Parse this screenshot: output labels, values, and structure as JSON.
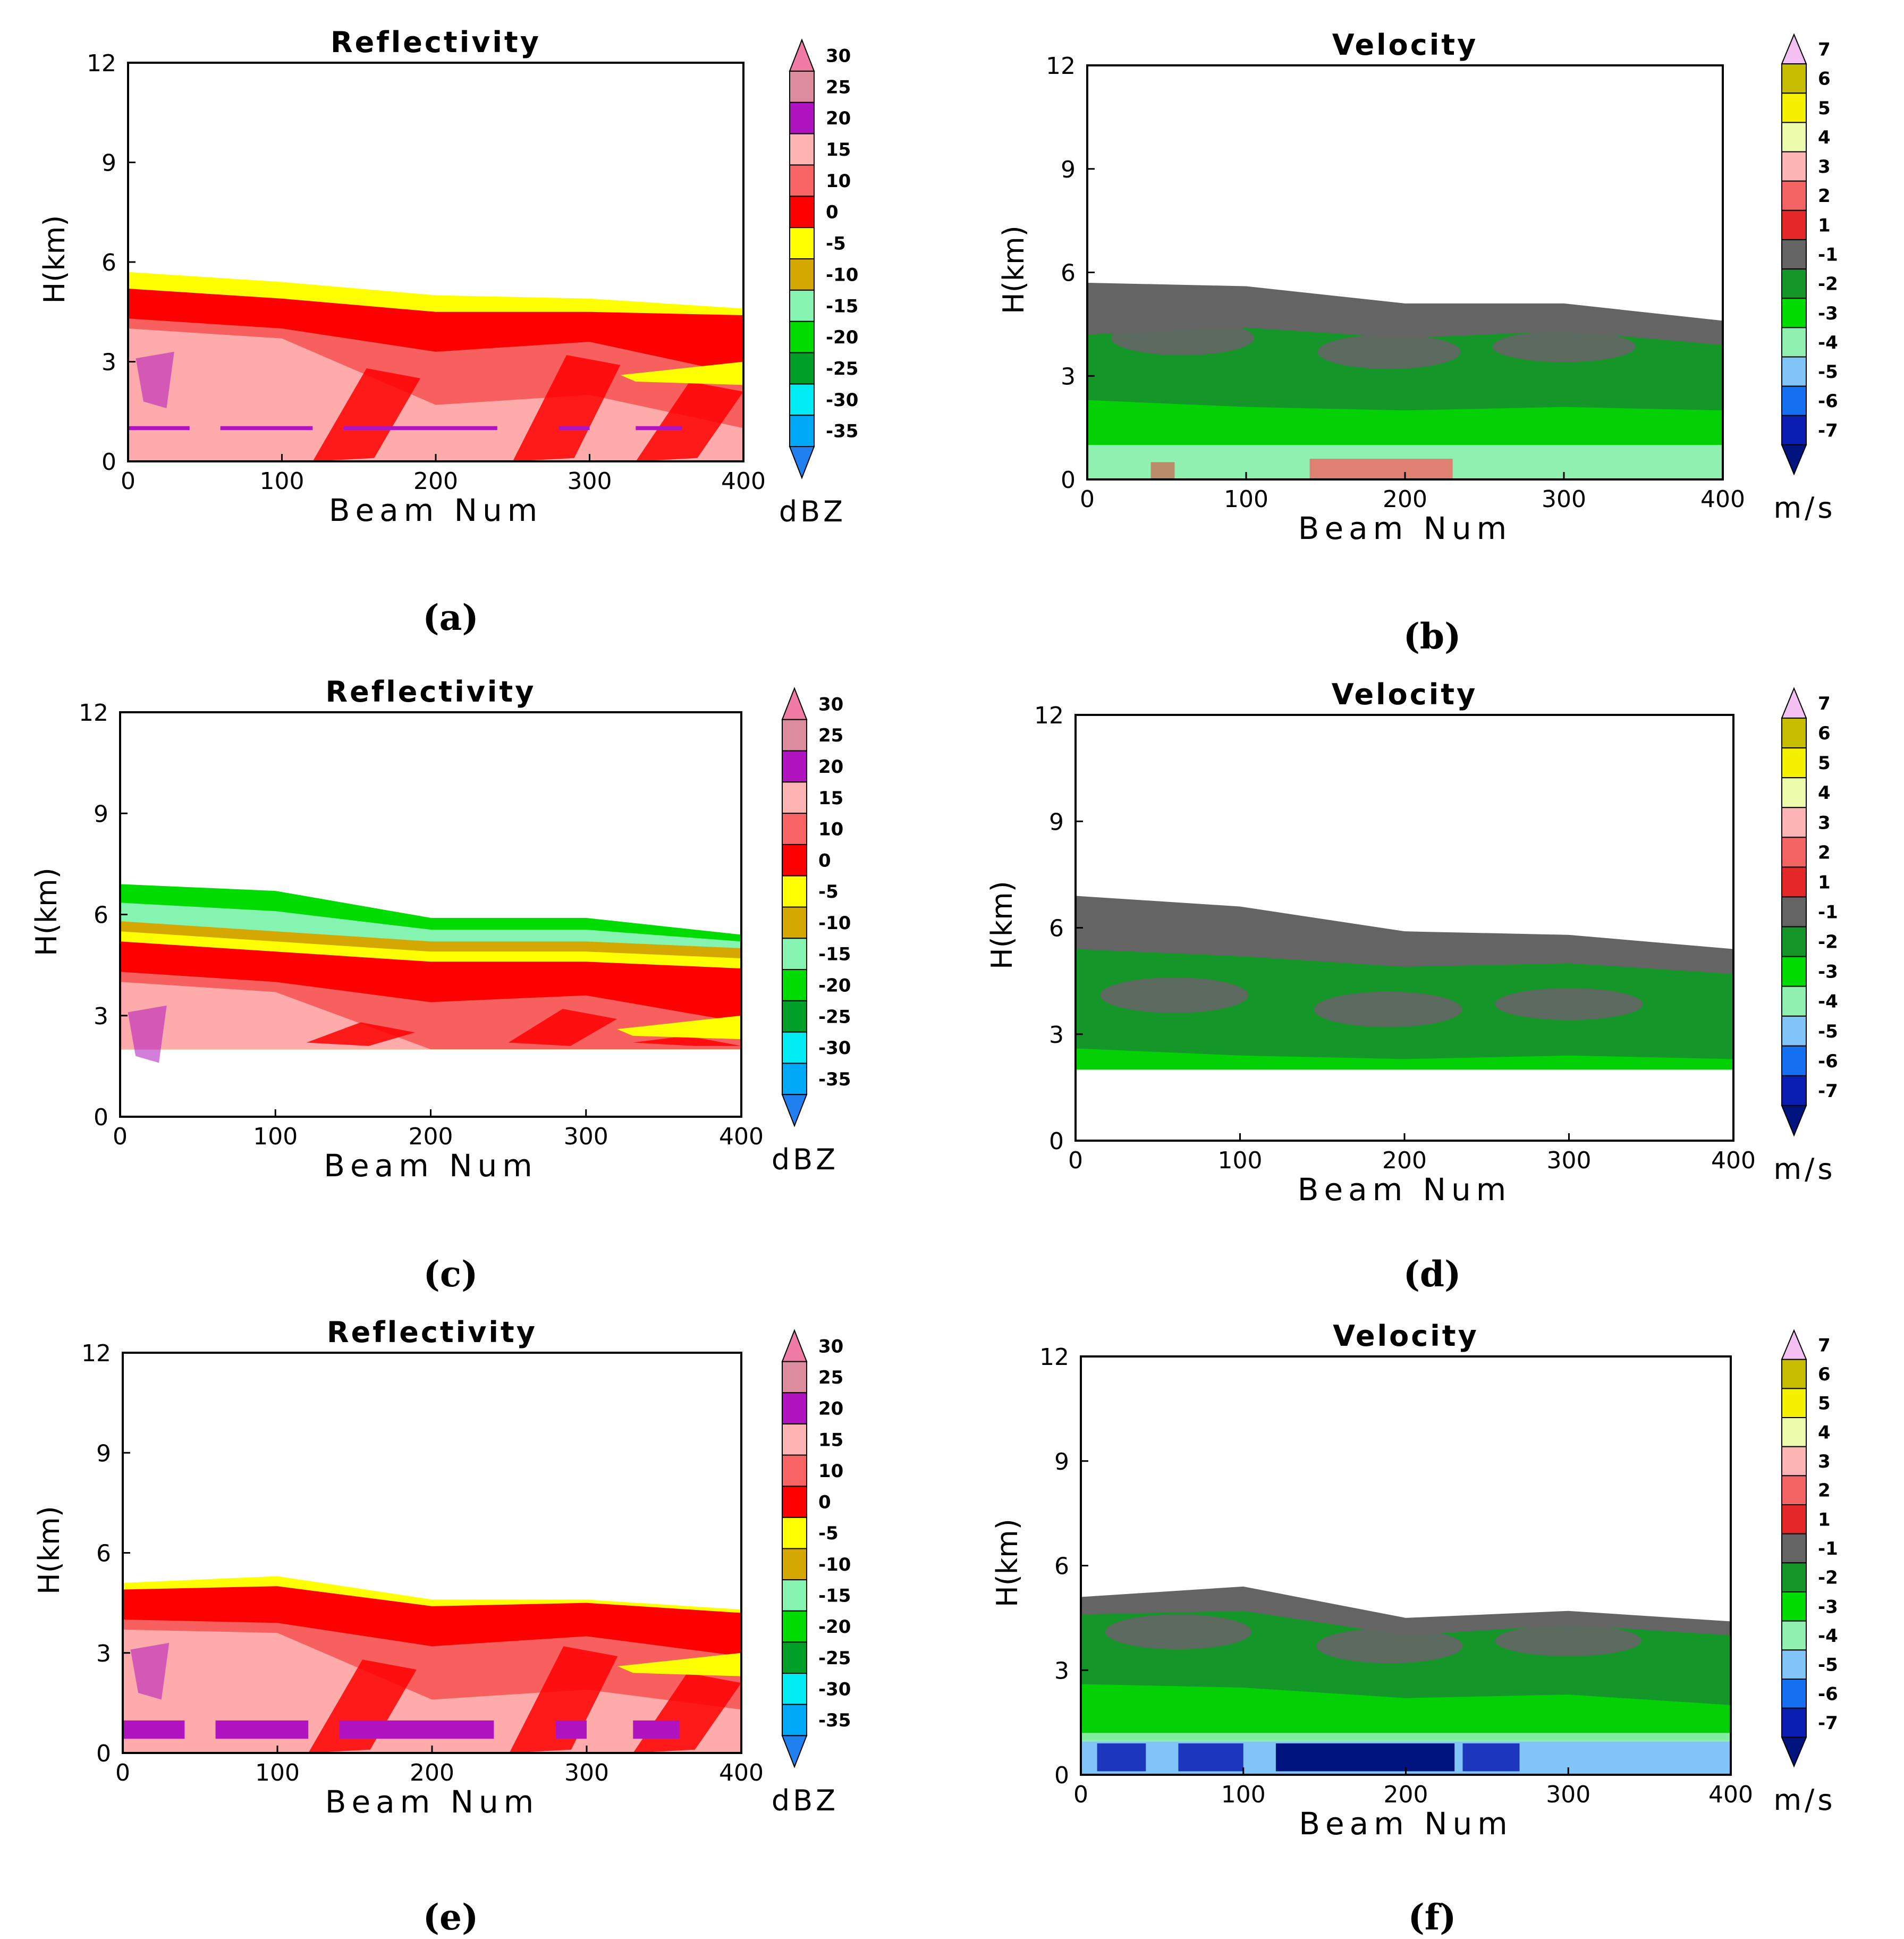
{
  "chart_data": [
    {
      "panel": "(a)",
      "type": "heatmap",
      "title": "Reflectivity",
      "xlabel": "Beam Num",
      "ylabel": "H(km)",
      "xlim": [
        0,
        400
      ],
      "ylim": [
        0,
        12
      ],
      "xticks": [
        "0",
        "100",
        "200",
        "300",
        "400"
      ],
      "yticks": [
        "0",
        "3",
        "6",
        "9",
        "12"
      ],
      "colorbar": {
        "unit": "dBZ",
        "labels": [
          "30",
          "25",
          "20",
          "15",
          "10",
          "0",
          "-5",
          "-10",
          "-15",
          "-20",
          "-25",
          "-30",
          "-35"
        ],
        "colors": [
          "#f07ca6",
          "#dc8c9c",
          "#b014c0",
          "#ffb4b4",
          "#f86464",
          "#ff0000",
          "#ffff00",
          "#d4a800",
          "#84f4b0",
          "#00dc00",
          "#00a028",
          "#00ecf4",
          "#00a8f8",
          "#2080f0"
        ]
      },
      "profile": {
        "top": [
          5.7,
          5.4,
          5.0,
          4.9,
          4.6
        ],
        "red_top": [
          5.2,
          4.9,
          4.5,
          4.5,
          4.4
        ],
        "mid_top": [
          4.3,
          4.0,
          3.3,
          3.6,
          2.6
        ],
        "base": 0.0,
        "band": [
          0.8,
          1.2
        ],
        "band_color": "#b014c0"
      }
    },
    {
      "panel": "(b)",
      "type": "heatmap",
      "title": "Velocity",
      "xlabel": "Beam Num",
      "ylabel": "H(km)",
      "xlim": [
        0,
        400
      ],
      "ylim": [
        0,
        12
      ],
      "xticks": [
        "0",
        "100",
        "200",
        "300",
        "400"
      ],
      "yticks": [
        "0",
        "3",
        "6",
        "9",
        "12"
      ],
      "colorbar": {
        "unit": "m/s",
        "labels": [
          "7",
          "6",
          "5",
          "4",
          "3",
          "2",
          "1",
          "-1",
          "-2",
          "-3",
          "-4",
          "-5",
          "-6",
          "-7"
        ],
        "colors": [
          "#f4c0f4",
          "#c8bc00",
          "#f4f000",
          "#ecfcac",
          "#fcb4b4",
          "#f46464",
          "#e42828",
          "#646464",
          "#149628",
          "#00dc00",
          "#90f0b0",
          "#80c4f8",
          "#1470f0",
          "#0a1eb4",
          "#001480"
        ]
      },
      "profile": {
        "top": [
          5.7,
          5.6,
          5.1,
          5.1,
          4.6
        ],
        "gray_bottom": [
          4.2,
          4.4,
          4.1,
          4.3,
          3.9
        ],
        "low_top": [
          2.3,
          2.1,
          2.0,
          2.1,
          2.0
        ],
        "base": 0.0,
        "band": [
          0.0,
          1.0
        ],
        "band_color": "#90f0b0"
      }
    },
    {
      "panel": "(c)",
      "type": "heatmap",
      "title": "Reflectivity",
      "xlabel": "Beam Num",
      "ylabel": "H(km)",
      "xlim": [
        0,
        400
      ],
      "ylim": [
        0,
        12
      ],
      "xticks": [
        "0",
        "100",
        "200",
        "300",
        "400"
      ],
      "yticks": [
        "0",
        "3",
        "6",
        "9",
        "12"
      ],
      "colorbar": {
        "unit": "dBZ",
        "labels": [
          "30",
          "25",
          "20",
          "15",
          "10",
          "0",
          "-5",
          "-10",
          "-15",
          "-20",
          "-25",
          "-30",
          "-35"
        ],
        "colors": [
          "#f07ca6",
          "#dc8c9c",
          "#b014c0",
          "#ffb4b4",
          "#f86464",
          "#ff0000",
          "#ffff00",
          "#d4a800",
          "#84f4b0",
          "#00dc00",
          "#00a028",
          "#00ecf4",
          "#00a8f8",
          "#2080f0"
        ]
      },
      "profile": {
        "top": [
          6.9,
          6.7,
          5.9,
          5.9,
          5.4
        ],
        "red_top": [
          5.2,
          4.9,
          4.6,
          4.6,
          4.4
        ],
        "mid_top": [
          4.3,
          4.0,
          3.4,
          3.6,
          2.8
        ],
        "base": 2.0
      }
    },
    {
      "panel": "(d)",
      "type": "heatmap",
      "title": "Velocity",
      "xlabel": "Beam Num",
      "ylabel": "H(km)",
      "xlim": [
        0,
        400
      ],
      "ylim": [
        0,
        12
      ],
      "xticks": [
        "0",
        "100",
        "200",
        "300",
        "400"
      ],
      "yticks": [
        "0",
        "3",
        "6",
        "9",
        "12"
      ],
      "colorbar": {
        "unit": "m/s",
        "labels": [
          "7",
          "6",
          "5",
          "4",
          "3",
          "2",
          "1",
          "-1",
          "-2",
          "-3",
          "-4",
          "-5",
          "-6",
          "-7"
        ],
        "colors": [
          "#f4c0f4",
          "#c8bc00",
          "#f4f000",
          "#ecfcac",
          "#fcb4b4",
          "#f46464",
          "#e42828",
          "#646464",
          "#149628",
          "#00dc00",
          "#90f0b0",
          "#80c4f8",
          "#1470f0",
          "#0a1eb4",
          "#001480"
        ]
      },
      "profile": {
        "top": [
          6.9,
          6.6,
          5.9,
          5.8,
          5.4
        ],
        "gray_bottom": [
          5.4,
          5.2,
          4.9,
          5.0,
          4.7
        ],
        "low_top": [
          2.6,
          2.4,
          2.3,
          2.4,
          2.3
        ],
        "base": 2.0
      }
    },
    {
      "panel": "(e)",
      "type": "heatmap",
      "title": "Reflectivity",
      "xlabel": "Beam Num",
      "ylabel": "H(km)",
      "xlim": [
        0,
        400
      ],
      "ylim": [
        0,
        12
      ],
      "xticks": [
        "0",
        "100",
        "200",
        "300",
        "400"
      ],
      "yticks": [
        "0",
        "3",
        "6",
        "9",
        "12"
      ],
      "colorbar": {
        "unit": "dBZ",
        "labels": [
          "30",
          "25",
          "20",
          "15",
          "10",
          "0",
          "-5",
          "-10",
          "-15",
          "-20",
          "-25",
          "-30",
          "-35"
        ],
        "colors": [
          "#f07ca6",
          "#dc8c9c",
          "#b014c0",
          "#ffb4b4",
          "#f86464",
          "#ff0000",
          "#ffff00",
          "#d4a800",
          "#84f4b0",
          "#00dc00",
          "#00a028",
          "#00ecf4",
          "#00a8f8",
          "#2080f0"
        ]
      },
      "profile": {
        "top": [
          5.1,
          5.3,
          4.6,
          4.6,
          4.3
        ],
        "red_top": [
          4.9,
          5.0,
          4.4,
          4.5,
          4.2
        ],
        "mid_top": [
          4.0,
          3.9,
          3.2,
          3.5,
          2.9
        ],
        "base": 0.0,
        "band": [
          0.3,
          1.1
        ],
        "band_color": "#b014c0"
      }
    },
    {
      "panel": "(f)",
      "type": "heatmap",
      "title": "Velocity",
      "xlabel": "Beam Num",
      "ylabel": "H(km)",
      "xlim": [
        0,
        400
      ],
      "ylim": [
        0,
        12
      ],
      "xticks": [
        "0",
        "100",
        "200",
        "300",
        "400"
      ],
      "yticks": [
        "0",
        "3",
        "6",
        "9",
        "12"
      ],
      "colorbar": {
        "unit": "m/s",
        "labels": [
          "7",
          "6",
          "5",
          "4",
          "3",
          "2",
          "1",
          "-1",
          "-2",
          "-3",
          "-4",
          "-5",
          "-6",
          "-7"
        ],
        "colors": [
          "#f4c0f4",
          "#c8bc00",
          "#f4f000",
          "#ecfcac",
          "#fcb4b4",
          "#f46464",
          "#e42828",
          "#646464",
          "#149628",
          "#00dc00",
          "#90f0b0",
          "#80c4f8",
          "#1470f0",
          "#0a1eb4",
          "#001480"
        ]
      },
      "profile": {
        "top": [
          5.1,
          5.4,
          4.5,
          4.7,
          4.4
        ],
        "gray_bottom": [
          4.6,
          4.7,
          4.0,
          4.3,
          4.0
        ],
        "low_top": [
          2.6,
          2.5,
          2.2,
          2.3,
          2.0
        ],
        "base": 0.0,
        "band": [
          0.0,
          1.0
        ],
        "band_color": "#80c4f8"
      }
    }
  ]
}
